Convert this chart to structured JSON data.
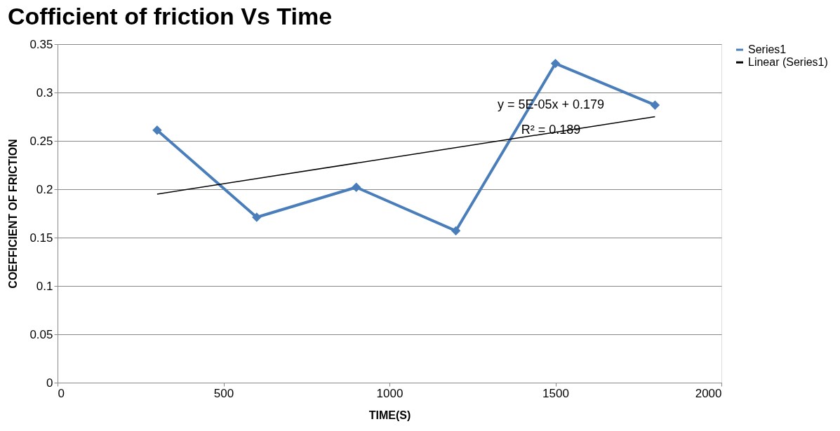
{
  "chart_data": {
    "type": "line",
    "title": "Cofficient of friction Vs Time",
    "xlabel": "TIME(S)",
    "ylabel": "COEFFICIENT OF FRICTION",
    "x": [
      300,
      600,
      900,
      1200,
      1500,
      1800
    ],
    "series": [
      {
        "name": "Series1",
        "color": "#4a7ebb",
        "marker": "diamond",
        "values": [
          0.261,
          0.171,
          0.202,
          0.157,
          0.33,
          0.287
        ]
      },
      {
        "name": "Linear (Series1)",
        "color": "#000000",
        "marker": "none",
        "x": [
          300,
          1800
        ],
        "values": [
          0.195,
          0.275
        ]
      }
    ],
    "annotations": [
      "y = 5E-05x + 0.179",
      "R² = 0.189"
    ],
    "xlim": [
      0,
      2000
    ],
    "xticks": [
      0,
      500,
      1000,
      1500,
      2000
    ],
    "ylim": [
      0,
      0.35
    ],
    "yticks": [
      0,
      0.05,
      0.1,
      0.15,
      0.2,
      0.25,
      0.3,
      0.35
    ],
    "grid": "y",
    "legend": "right"
  }
}
